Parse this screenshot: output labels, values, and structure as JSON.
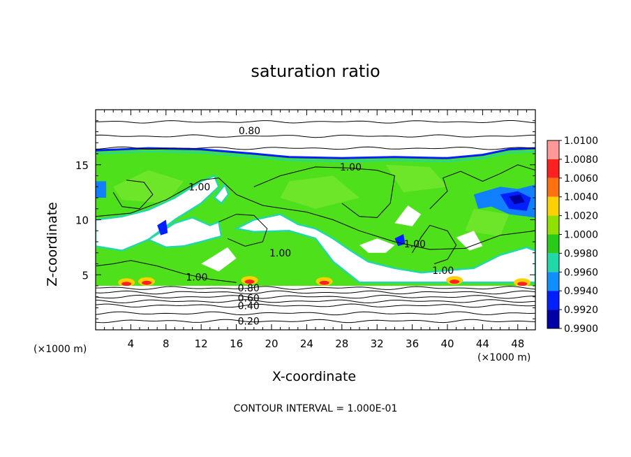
{
  "chart_data": {
    "type": "heatmap",
    "title": "saturation ratio",
    "xlabel": "X-coordinate",
    "ylabel": "Z-coordinate",
    "x_unit_label": "(×1000 m)",
    "x_ticks": [
      "4",
      "8",
      "12",
      "16",
      "20",
      "24",
      "28",
      "32",
      "36",
      "40",
      "44",
      "48"
    ],
    "y_ticks": [
      "5",
      "10",
      "15"
    ],
    "xlim": [
      0,
      50
    ],
    "ylim": [
      0,
      20
    ],
    "footer": "CONTOUR INTERVAL = 1.000E-01",
    "contour_labels": [
      {
        "text": "0.80",
        "x": 17.5,
        "z": 18.1
      },
      {
        "text": "1.00",
        "x": 29.0,
        "z": 14.8
      },
      {
        "text": "1.00",
        "x": 11.8,
        "z": 13.0
      },
      {
        "text": "1.00",
        "x": 21.0,
        "z": 7.0
      },
      {
        "text": "1.00",
        "x": 36.3,
        "z": 7.8
      },
      {
        "text": "1.00",
        "x": 39.5,
        "z": 5.4
      },
      {
        "text": "1.00",
        "x": 11.5,
        "z": 4.8
      },
      {
        "text": "0.80",
        "x": 17.4,
        "z": 3.8
      },
      {
        "text": "0.60",
        "x": 17.4,
        "z": 2.9
      },
      {
        "text": "0.40",
        "x": 17.4,
        "z": 2.2
      },
      {
        "text": "0.20",
        "x": 17.4,
        "z": 0.8
      }
    ],
    "colorbar": {
      "labels": [
        "1.0100",
        "1.0080",
        "1.0060",
        "1.0040",
        "1.0020",
        "1.0000",
        "0.9980",
        "0.9960",
        "0.9940",
        "0.9920",
        "0.9900"
      ],
      "colors": [
        "#ff9898",
        "#ff2020",
        "#ff7010",
        "#ffd000",
        "#90e000",
        "#28cc18",
        "#20d8a8",
        "#1090ff",
        "#0020ff",
        "#0000a8"
      ]
    },
    "field_colors": {
      "saturated": "#4ee01a",
      "saturated_light": "#7ae830",
      "near_saturated": "#20d8a8",
      "subsaturated_low": "#1080ff",
      "subsaturated_mid": "#0020ff",
      "subsaturated_deep": "#0000a0",
      "supersaturated_high": "#ff2020",
      "supersaturated_mid": "#ffd000",
      "dry": "#ffffff"
    },
    "cloud_top_z": 16.3,
    "cloud_base_z": 4.0,
    "lower_contours_z": [
      3.8,
      3.4,
      3.0,
      2.6,
      2.2,
      1.5,
      0.8
    ],
    "upper_contours_z": [
      18.9,
      17.6,
      16.5
    ]
  }
}
